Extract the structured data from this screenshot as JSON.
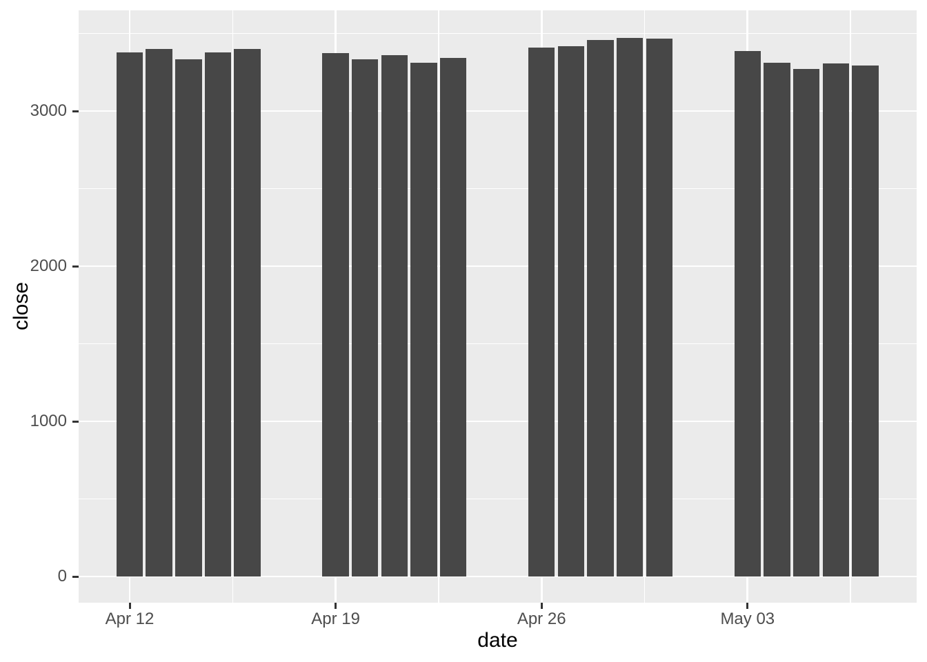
{
  "chart_data": {
    "type": "bar",
    "title": "",
    "xlabel": "date",
    "ylabel": "close",
    "grid": true,
    "legend_position": "none",
    "ylim": [
      -169,
      3649
    ],
    "x_tick_labels": [
      "Apr 12",
      "Apr 19",
      "Apr 26",
      "May 03"
    ],
    "x_tick_days": [
      0,
      7,
      14,
      21
    ],
    "x_minor_days": [
      3.5,
      10.5,
      17.5,
      24.5
    ],
    "y_ticks": [
      {
        "value": 0,
        "label": "0"
      },
      {
        "value": 1000,
        "label": "1000"
      },
      {
        "value": 2000,
        "label": "2000"
      },
      {
        "value": 3000,
        "label": "3000"
      }
    ],
    "y_minor_ticks": [
      500,
      1500,
      2500,
      3500
    ],
    "bars": [
      {
        "label": "Apr 12",
        "day": 0,
        "value": 3379
      },
      {
        "label": "Apr 13",
        "day": 1,
        "value": 3400
      },
      {
        "label": "Apr 14",
        "day": 2,
        "value": 3333
      },
      {
        "label": "Apr 15",
        "day": 3,
        "value": 3379
      },
      {
        "label": "Apr 16",
        "day": 4,
        "value": 3399
      },
      {
        "label": "Apr 19",
        "day": 7,
        "value": 3372
      },
      {
        "label": "Apr 20",
        "day": 8,
        "value": 3335
      },
      {
        "label": "Apr 21",
        "day": 9,
        "value": 3362
      },
      {
        "label": "Apr 22",
        "day": 10,
        "value": 3309
      },
      {
        "label": "Apr 23",
        "day": 11,
        "value": 3341
      },
      {
        "label": "Apr 26",
        "day": 14,
        "value": 3409
      },
      {
        "label": "Apr 27",
        "day": 15,
        "value": 3417
      },
      {
        "label": "Apr 28",
        "day": 16,
        "value": 3459
      },
      {
        "label": "Apr 29",
        "day": 17,
        "value": 3471
      },
      {
        "label": "Apr 30",
        "day": 18,
        "value": 3467
      },
      {
        "label": "May 03",
        "day": 21,
        "value": 3386
      },
      {
        "label": "May 04",
        "day": 22,
        "value": 3312
      },
      {
        "label": "May 05",
        "day": 23,
        "value": 3271
      },
      {
        "label": "May 06",
        "day": 24,
        "value": 3306
      },
      {
        "label": "May 07",
        "day": 25,
        "value": 3292
      }
    ],
    "colors": {
      "bar": "#474747",
      "panel_bg": "#EBEBEB",
      "grid": "#FFFFFF",
      "tick_mark": "#333333",
      "tick_label": "#4D4D4D",
      "axis_title": "#000000",
      "background": "#FFFFFF"
    }
  }
}
